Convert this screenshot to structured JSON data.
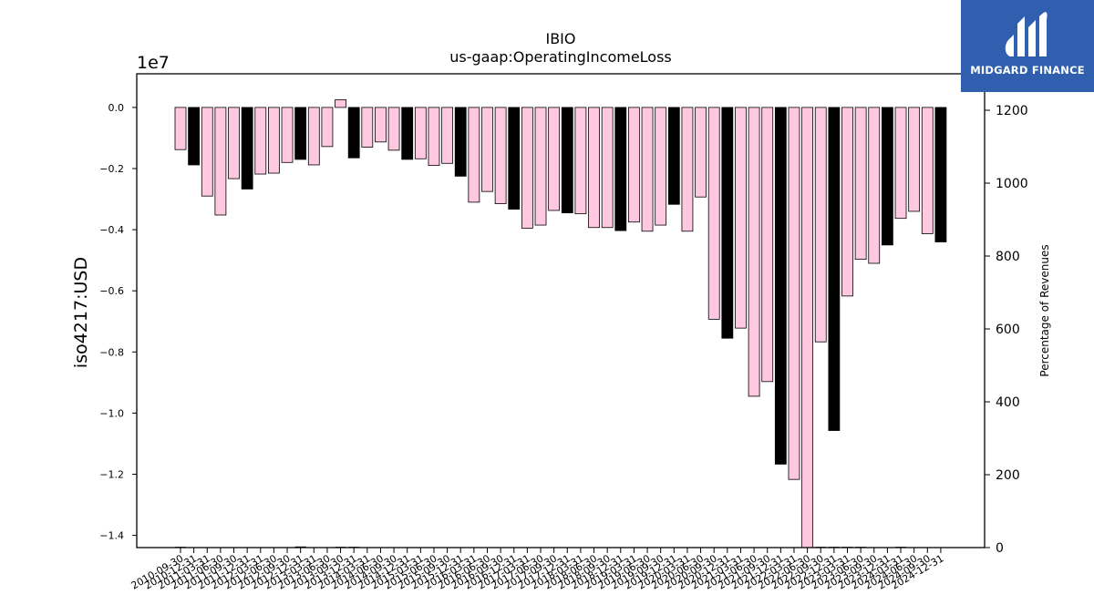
{
  "logo": {
    "text": "MIDGARD FINANCE",
    "background": "#2f5fae"
  },
  "chart_data": {
    "type": "bar",
    "title": "IBIO",
    "subtitle": "us-gaap:OperatingIncomeLoss",
    "ylabel": "iso4217:USD",
    "y_scale_label": "1e7",
    "y2label": "Percentage of Revenues",
    "ylim": [
      -1.44,
      0.11
    ],
    "y2lim": [
      0,
      1300
    ],
    "y_ticks": [
      "0.0",
      "−0.2",
      "−0.4",
      "−0.6",
      "−0.8",
      "−1.0",
      "−1.2",
      "−1.4"
    ],
    "y2_ticks": [
      "0",
      "200",
      "400",
      "600",
      "800",
      "1000",
      "1200"
    ],
    "colors": {
      "quarter": "#ffc8e1",
      "annual": "#000000",
      "edge": "#000000"
    },
    "categories": [
      "2010-09-30",
      "2010-12-31",
      "2011-03-31",
      "2011-06-30",
      "2011-09-30",
      "2011-12-31",
      "2012-03-31",
      "2012-06-30",
      "2012-09-30",
      "2012-12-31",
      "2013-03-31",
      "2013-06-30",
      "2013-09-30",
      "2013-12-31",
      "2014-03-31",
      "2014-06-30",
      "2014-09-30",
      "2014-12-31",
      "2015-03-31",
      "2015-06-30",
      "2015-09-30",
      "2015-12-31",
      "2016-03-31",
      "2016-06-30",
      "2016-09-30",
      "2016-12-31",
      "2017-03-31",
      "2017-06-30",
      "2017-09-30",
      "2017-12-31",
      "2018-03-31",
      "2018-06-30",
      "2018-09-30",
      "2018-12-31",
      "2019-03-31",
      "2019-06-30",
      "2019-09-30",
      "2019-12-31",
      "2020-03-31",
      "2020-06-30",
      "2020-09-30",
      "2020-12-31",
      "2021-03-31",
      "2021-06-30",
      "2021-09-30",
      "2021-12-31",
      "2022-03-31",
      "2022-06-30",
      "2022-09-30",
      "2022-12-31",
      "2023-03-31",
      "2023-06-30",
      "2023-09-30",
      "2023-12-31",
      "2024-03-31",
      "2024-06-30",
      "2024-09-30",
      "2024-12-31"
    ],
    "values": [
      -0.138,
      -0.188,
      -0.29,
      -0.352,
      -0.233,
      -0.267,
      -0.218,
      -0.215,
      -0.18,
      -0.17,
      -0.188,
      -0.128,
      0.025,
      -0.165,
      -0.13,
      -0.113,
      -0.14,
      -0.17,
      -0.168,
      -0.19,
      -0.183,
      -0.225,
      -0.31,
      -0.275,
      -0.315,
      -0.333,
      -0.395,
      -0.385,
      -0.337,
      -0.345,
      -0.348,
      -0.393,
      -0.393,
      -0.403,
      -0.375,
      -0.405,
      -0.385,
      -0.317,
      -0.405,
      -0.293,
      -0.693,
      -0.755,
      -0.722,
      -0.945,
      -0.897,
      -1.167,
      -1.217,
      -1.44,
      -0.767,
      -1.057,
      -0.617,
      -0.497,
      -0.51,
      -0.45,
      -0.363,
      -0.34,
      -0.413,
      -0.44
    ],
    "annual": [
      false,
      true,
      false,
      false,
      false,
      true,
      false,
      false,
      false,
      true,
      false,
      false,
      false,
      true,
      false,
      false,
      false,
      true,
      false,
      false,
      false,
      true,
      false,
      false,
      false,
      true,
      false,
      false,
      false,
      true,
      false,
      false,
      false,
      true,
      false,
      false,
      false,
      true,
      false,
      false,
      false,
      true,
      false,
      false,
      false,
      true,
      false,
      false,
      false,
      true,
      false,
      false,
      false,
      true,
      false,
      false,
      false,
      true
    ],
    "percentage_of_revenues": [
      2,
      0,
      0,
      0,
      0,
      0,
      0,
      0,
      0,
      3,
      0,
      0,
      2,
      2,
      0,
      0,
      0,
      0,
      0,
      0,
      0,
      0,
      0,
      0,
      0,
      0,
      0,
      0,
      0,
      0,
      0,
      0,
      0,
      0,
      0,
      0,
      0,
      0,
      0,
      0,
      0,
      0,
      0,
      0,
      0,
      0,
      0,
      0,
      2,
      2,
      2,
      2,
      0,
      0,
      2,
      0,
      0,
      0
    ]
  }
}
